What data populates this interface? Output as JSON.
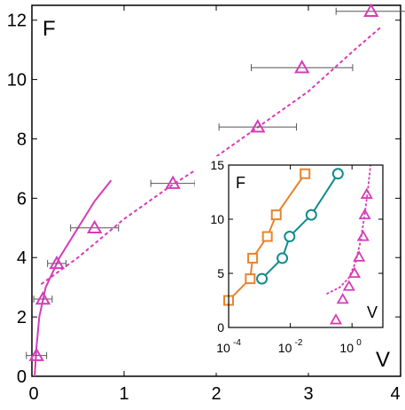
{
  "colors": {
    "magenta": "#d63cb8",
    "orange": "#e8842c",
    "teal": "#0f8c8c",
    "errorbar": "#555555"
  },
  "chart_data": [
    {
      "type": "scatter",
      "panel": "main",
      "ylabel": "F",
      "xlabel": "",
      "xlim": [
        0,
        4
      ],
      "ylim": [
        0,
        12.5
      ],
      "x_ticks": [
        "0",
        "1",
        "2",
        "3",
        "4"
      ],
      "y_ticks": [
        "0",
        "2",
        "4",
        "6",
        "8",
        "10",
        "12"
      ],
      "grid": false,
      "series": [
        {
          "marker": "triangle",
          "color": "#d63cb8",
          "points": [
            {
              "x": 0.05,
              "y": 0.7,
              "xerr": 0.11
            },
            {
              "x": 0.12,
              "y": 2.6,
              "xerr": 0.1
            },
            {
              "x": 0.27,
              "y": 3.8,
              "xerr": 0.1
            },
            {
              "x": 0.68,
              "y": 5.0,
              "xerr": 0.26
            },
            {
              "x": 1.53,
              "y": 6.5,
              "xerr": 0.24
            },
            {
              "x": 2.45,
              "y": 8.4,
              "xerr": 0.42
            },
            {
              "x": 2.93,
              "y": 10.4,
              "xerr": 0.55
            },
            {
              "x": 3.68,
              "y": 12.3,
              "xerr": 0.38
            }
          ]
        }
      ],
      "fits": [
        {
          "style": "dashed",
          "color": "#d63cb8",
          "points": [
            [
              0.1,
              3.1
            ],
            [
              0.5,
              4.0
            ],
            [
              1.0,
              5.3
            ],
            [
              1.5,
              6.4
            ],
            [
              2.0,
              7.4
            ],
            [
              2.5,
              8.5
            ],
            [
              3.0,
              9.6
            ],
            [
              3.5,
              11.0
            ],
            [
              3.8,
              11.8
            ]
          ]
        },
        {
          "style": "solid",
          "color": "#d63cb8",
          "points": [
            [
              0.03,
              0
            ],
            [
              0.05,
              1.0
            ],
            [
              0.08,
              2.0
            ],
            [
              0.15,
              3.0
            ],
            [
              0.3,
              4.0
            ],
            [
              0.5,
              5.0
            ],
            [
              0.68,
              5.9
            ],
            [
              0.86,
              6.6
            ]
          ]
        }
      ]
    },
    {
      "type": "scatter",
      "panel": "inset",
      "ylabel": "F",
      "xlabel": "V",
      "corner_label": "V",
      "xscale": "log",
      "xlim": [
        0.0001,
        10
      ],
      "ylim": [
        0,
        15
      ],
      "x_ticks": [
        "10",
        "10",
        "10"
      ],
      "x_tick_exponents": [
        "-4",
        "-2",
        "0"
      ],
      "y_ticks": [
        "0",
        "5",
        "10",
        "15"
      ],
      "grid": false,
      "series": [
        {
          "marker": "square",
          "color": "#e8842c",
          "line": "solid",
          "points": [
            [
              0.0001,
              2.5
            ],
            [
              0.0005,
              4.5
            ],
            [
              0.0006,
              6.4
            ],
            [
              0.0018,
              8.4
            ],
            [
              0.0035,
              10.4
            ],
            [
              0.03,
              14.2
            ]
          ]
        },
        {
          "marker": "circle",
          "color": "#0f8c8c",
          "line": "solid",
          "points": [
            [
              0.0012,
              4.5
            ],
            [
              0.0055,
              6.4
            ],
            [
              0.0095,
              8.4
            ],
            [
              0.048,
              10.4
            ],
            [
              0.35,
              14.2
            ]
          ]
        },
        {
          "marker": "triangle",
          "color": "#d63cb8",
          "line": "none",
          "points": [
            [
              0.3,
              0.7
            ],
            [
              0.5,
              2.6
            ],
            [
              0.8,
              3.8
            ],
            [
              1.2,
              5.0
            ],
            [
              1.7,
              6.5
            ],
            [
              2.3,
              8.4
            ],
            [
              2.6,
              10.4
            ],
            [
              3.0,
              12.3
            ]
          ]
        }
      ],
      "fits": [
        {
          "style": "dashed",
          "color": "#d63cb8",
          "points": [
            [
              0.15,
              3.1
            ],
            [
              0.4,
              3.7
            ],
            [
              0.8,
              4.6
            ],
            [
              1.3,
              6.0
            ],
            [
              1.9,
              8.0
            ],
            [
              2.6,
              10.5
            ],
            [
              3.3,
              12.8
            ],
            [
              4.0,
              15.0
            ]
          ]
        }
      ]
    }
  ]
}
